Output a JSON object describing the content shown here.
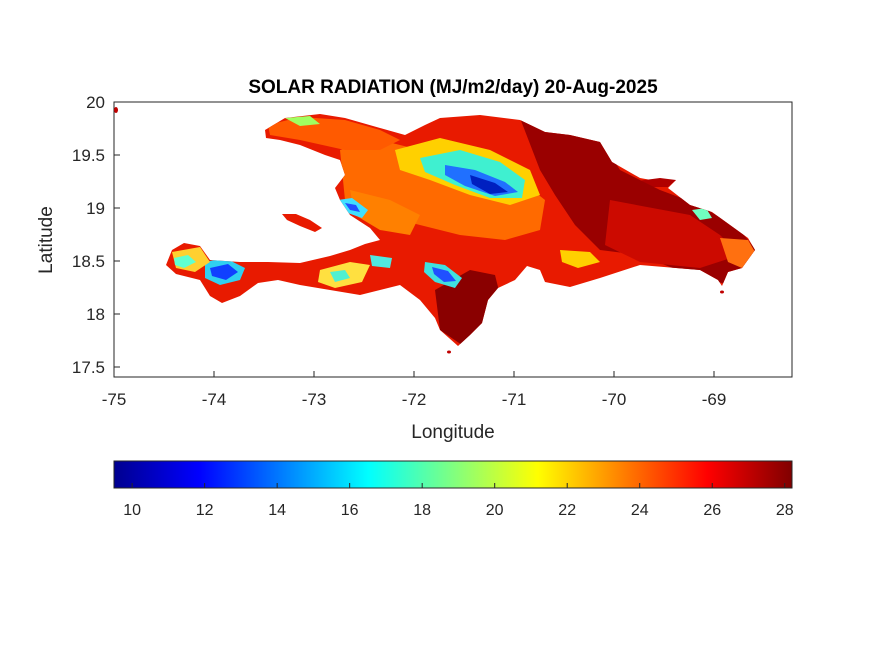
{
  "title": "SOLAR RADIATION (MJ/m2/day) 20-Aug-2025",
  "xlabel": "Longitude",
  "ylabel": "Latitude",
  "xticks": [
    "-75",
    "-74",
    "-73",
    "-72",
    "-71",
    "-70",
    "-69"
  ],
  "yticks": [
    "20",
    "19.5",
    "19",
    "18.5",
    "18",
    "17.5"
  ],
  "colorbar": {
    "ticks": [
      "10",
      "12",
      "14",
      "16",
      "18",
      "20",
      "22",
      "24",
      "26",
      "28"
    ],
    "range": [
      9.5,
      28.2
    ],
    "colormap": "jet"
  },
  "chart_data": {
    "type": "heatmap",
    "xlim": [
      -75,
      -68.2
    ],
    "ylim": [
      17.45,
      20.02
    ],
    "colorbar_range": [
      9.5,
      28.2
    ],
    "palette": [
      "#00008f",
      "#0000ff",
      "#0080ff",
      "#00ffff",
      "#80ff80",
      "#ffff00",
      "#ff8000",
      "#ff0000",
      "#800000"
    ]
  }
}
